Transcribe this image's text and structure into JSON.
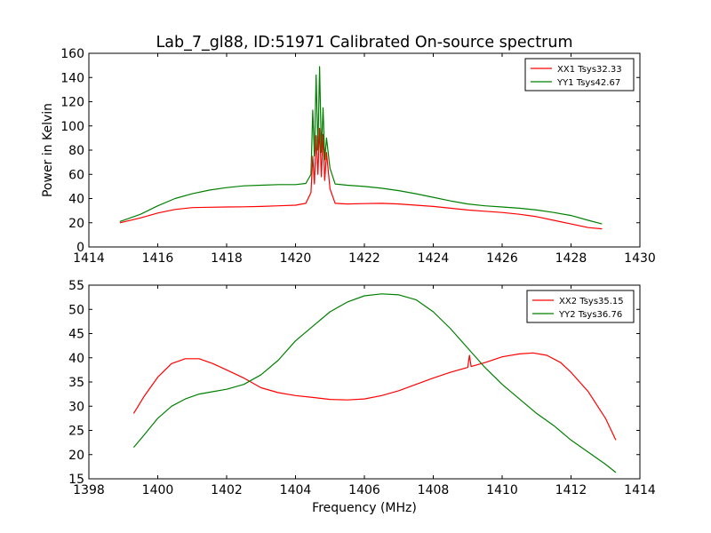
{
  "title": "Lab_7_gl88, ID:51971 Calibrated On-source spectrum",
  "chart_data": [
    {
      "type": "line",
      "title": "Lab_7_gl88, ID:51971 Calibrated On-source spectrum",
      "xlabel": "",
      "ylabel": "Power in Kelvin",
      "xlim": [
        1414,
        1430
      ],
      "ylim": [
        0,
        160
      ],
      "xticks": [
        "1414",
        "1416",
        "1418",
        "1420",
        "1422",
        "1424",
        "1426",
        "1428",
        "1430"
      ],
      "yticks": [
        "0",
        "20",
        "40",
        "60",
        "80",
        "100",
        "120",
        "140",
        "160"
      ],
      "grid": false,
      "legend_position": "top-right",
      "series": [
        {
          "name": "XX1 Tsys32.33",
          "color": "#ff0000",
          "x": [
            1414.9,
            1415.5,
            1416.0,
            1416.5,
            1417.0,
            1417.5,
            1418.0,
            1418.5,
            1419.0,
            1419.5,
            1420.0,
            1420.3,
            1420.45,
            1420.5,
            1420.55,
            1420.6,
            1420.65,
            1420.7,
            1420.75,
            1420.8,
            1420.85,
            1420.9,
            1421.0,
            1421.15,
            1421.5,
            1422.0,
            1422.5,
            1423.0,
            1423.5,
            1424.0,
            1424.5,
            1425.0,
            1425.5,
            1426.0,
            1426.5,
            1427.0,
            1427.5,
            1428.0,
            1428.5,
            1428.9
          ],
          "y": [
            20,
            24,
            28,
            31,
            32.5,
            32.8,
            33,
            33.2,
            33.5,
            34,
            34.5,
            36,
            45,
            75,
            52,
            92,
            60,
            98,
            58,
            93,
            55,
            78,
            48,
            36,
            35.5,
            35.8,
            36,
            35.5,
            34.5,
            33.5,
            32,
            30.5,
            29.5,
            28.5,
            27,
            25,
            22,
            19,
            16,
            15
          ]
        },
        {
          "name": "YY1 Tsys42.67",
          "color": "#008000",
          "x": [
            1414.9,
            1415.5,
            1416.0,
            1416.5,
            1417.0,
            1417.5,
            1418.0,
            1418.5,
            1419.0,
            1419.5,
            1420.0,
            1420.3,
            1420.45,
            1420.5,
            1420.55,
            1420.6,
            1420.65,
            1420.7,
            1420.75,
            1420.8,
            1420.85,
            1420.9,
            1421.0,
            1421.15,
            1421.5,
            1422.0,
            1422.5,
            1423.0,
            1423.5,
            1424.0,
            1424.5,
            1425.0,
            1425.5,
            1426.0,
            1426.5,
            1427.0,
            1427.5,
            1428.0,
            1428.5,
            1428.9
          ],
          "y": [
            21,
            27,
            34,
            40,
            44,
            47,
            49,
            50.5,
            51,
            51.5,
            51.5,
            52.5,
            60,
            113,
            75,
            142,
            80,
            149,
            78,
            115,
            72,
            90,
            65,
            52,
            51,
            50,
            48.5,
            46.5,
            44,
            41,
            38,
            35.5,
            34,
            33,
            32,
            30.5,
            28.5,
            26,
            22,
            19
          ]
        }
      ]
    },
    {
      "type": "line",
      "title": "",
      "xlabel": "Frequency (MHz)",
      "ylabel": "",
      "xlim": [
        1398,
        1414
      ],
      "ylim": [
        15,
        55
      ],
      "xticks": [
        "1398",
        "1400",
        "1402",
        "1404",
        "1406",
        "1408",
        "1410",
        "1412",
        "1414"
      ],
      "yticks": [
        "15",
        "20",
        "25",
        "30",
        "35",
        "40",
        "45",
        "50",
        "55"
      ],
      "grid": false,
      "legend_position": "top-right",
      "series": [
        {
          "name": "XX2 Tsys35.15",
          "color": "#ff0000",
          "x": [
            1399.3,
            1399.6,
            1400.0,
            1400.4,
            1400.8,
            1401.2,
            1401.6,
            1402.0,
            1402.5,
            1403.0,
            1403.5,
            1404.0,
            1404.5,
            1405.0,
            1405.5,
            1406.0,
            1406.5,
            1407.0,
            1407.5,
            1408.0,
            1408.5,
            1409.0,
            1409.05,
            1409.1,
            1409.5,
            1410.0,
            1410.5,
            1410.9,
            1411.3,
            1411.7,
            1412.0,
            1412.5,
            1413.0,
            1413.3
          ],
          "y": [
            28.5,
            32,
            36,
            38.8,
            39.8,
            39.8,
            38.8,
            37.5,
            35.8,
            33.8,
            32.8,
            32.2,
            31.8,
            31.4,
            31.3,
            31.5,
            32.2,
            33.2,
            34.5,
            35.8,
            37,
            38,
            40.5,
            38.2,
            39,
            40.2,
            40.8,
            41,
            40.5,
            39,
            37,
            33,
            27.5,
            23
          ]
        },
        {
          "name": "YY2 Tsys36.76",
          "color": "#008000",
          "x": [
            1399.3,
            1399.6,
            1400.0,
            1400.4,
            1400.8,
            1401.2,
            1401.6,
            1402.0,
            1402.5,
            1403.0,
            1403.5,
            1404.0,
            1404.5,
            1405.0,
            1405.5,
            1406.0,
            1406.5,
            1407.0,
            1407.5,
            1408.0,
            1408.5,
            1409.0,
            1409.5,
            1410.0,
            1410.5,
            1411.0,
            1411.5,
            1412.0,
            1412.5,
            1413.0,
            1413.3
          ],
          "y": [
            21.5,
            24,
            27.5,
            30,
            31.5,
            32.5,
            33,
            33.5,
            34.5,
            36.5,
            39.5,
            43.5,
            46.5,
            49.5,
            51.5,
            52.8,
            53.2,
            53,
            52,
            49.5,
            46,
            42,
            38,
            34.5,
            31.5,
            28.5,
            26,
            23,
            20.5,
            18,
            16.3
          ]
        }
      ]
    }
  ]
}
